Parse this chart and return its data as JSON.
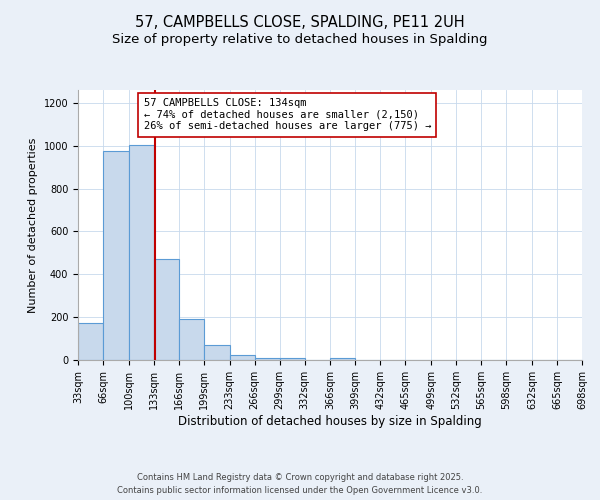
{
  "title": "57, CAMPBELLS CLOSE, SPALDING, PE11 2UH",
  "subtitle": "Size of property relative to detached houses in Spalding",
  "xlabel": "Distribution of detached houses by size in Spalding",
  "ylabel": "Number of detached properties",
  "bar_edges": [
    33,
    66,
    100,
    133,
    166,
    199,
    233,
    266,
    299,
    332,
    366,
    399,
    432,
    465,
    499,
    532,
    565,
    598,
    632,
    665,
    698
  ],
  "bar_heights": [
    175,
    975,
    1005,
    470,
    190,
    70,
    22,
    10,
    10,
    0,
    10,
    0,
    0,
    0,
    0,
    0,
    0,
    0,
    0,
    0
  ],
  "bar_color": "#c8d9ec",
  "bar_edge_color": "#5b9bd5",
  "bar_linewidth": 0.8,
  "vline_x": 134,
  "vline_color": "#c00000",
  "vline_linewidth": 1.5,
  "annotation_title": "57 CAMPBELLS CLOSE: 134sqm",
  "annotation_line1": "← 74% of detached houses are smaller (2,150)",
  "annotation_line2": "26% of semi-detached houses are larger (775) →",
  "annotation_box_color": "#ffffff",
  "annotation_box_edge": "#c00000",
  "annotation_fontsize": 7.5,
  "ylim": [
    0,
    1260
  ],
  "yticks": [
    0,
    200,
    400,
    600,
    800,
    1000,
    1200
  ],
  "bg_color": "#eaf0f8",
  "plot_bg_color": "#ffffff",
  "grid_color": "#c8d9ec",
  "title_fontsize": 10.5,
  "subtitle_fontsize": 9.5,
  "xlabel_fontsize": 8.5,
  "ylabel_fontsize": 8,
  "tick_fontsize": 7,
  "footer_line1": "Contains HM Land Registry data © Crown copyright and database right 2025.",
  "footer_line2": "Contains public sector information licensed under the Open Government Licence v3.0.",
  "footer_fontsize": 6.0
}
